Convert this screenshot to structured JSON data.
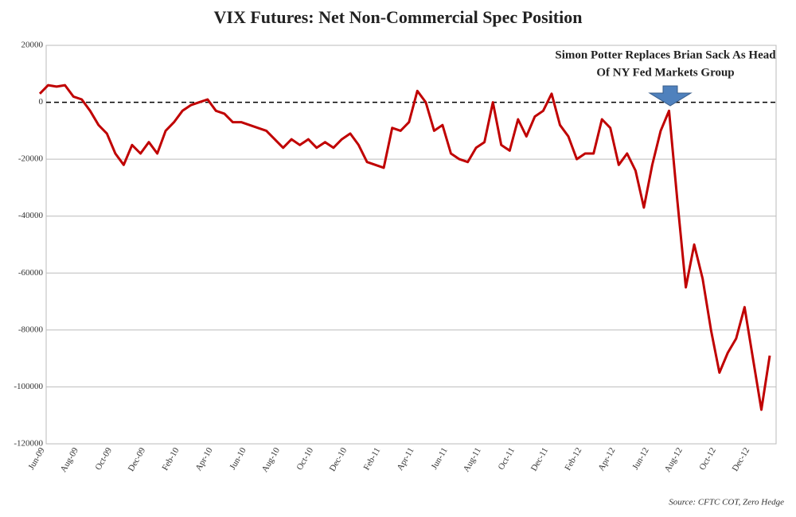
{
  "chart_data": {
    "type": "line",
    "title": "VIX Futures: Net Non-Commercial Spec Position",
    "annotation": [
      "Simon Potter Replaces Brian Sack As Head",
      "Of NY Fed Markets Group"
    ],
    "source": "Source: CFTC COT, Zero Hedge",
    "categories": [
      "Jun-09",
      null,
      null,
      null,
      "Aug-09",
      null,
      null,
      null,
      "Oct-09",
      null,
      null,
      null,
      "Dec-09",
      null,
      null,
      null,
      "Feb-10",
      null,
      null,
      null,
      "Apr-10",
      null,
      null,
      null,
      "Jun-10",
      null,
      null,
      null,
      "Aug-10",
      null,
      null,
      null,
      "Oct-10",
      null,
      null,
      null,
      "Dec-10",
      null,
      null,
      null,
      "Feb-11",
      null,
      null,
      null,
      "Apr-11",
      null,
      null,
      null,
      "Jun-11",
      null,
      null,
      null,
      "Aug-11",
      null,
      null,
      null,
      "Oct-11",
      null,
      null,
      null,
      "Dec-11",
      null,
      null,
      null,
      "Feb-12",
      null,
      null,
      null,
      "Apr-12",
      null,
      null,
      null,
      "Jun-12",
      null,
      null,
      null,
      "Aug-12",
      null,
      null,
      null,
      "Oct-12",
      null,
      null,
      null,
      "Dec-12",
      null,
      null,
      null
    ],
    "values": [
      3000,
      6000,
      5500,
      6000,
      2000,
      1000,
      -3000,
      -8000,
      -11000,
      -18000,
      -22000,
      -15000,
      -18000,
      -14000,
      -18000,
      -10000,
      -7000,
      -3000,
      -1000,
      0,
      1000,
      -3000,
      -4000,
      -7000,
      -7000,
      -8000,
      -9000,
      -10000,
      -13000,
      -16000,
      -13000,
      -15000,
      -13000,
      -16000,
      -14000,
      -16000,
      -13000,
      -11000,
      -15000,
      -21000,
      -22000,
      -23000,
      -9000,
      -10000,
      -7000,
      4000,
      0,
      -10000,
      -8000,
      -18000,
      -20000,
      -21000,
      -16000,
      -14000,
      0,
      -15000,
      -17000,
      -6000,
      -12000,
      -5000,
      -3000,
      3000,
      -8000,
      -12000,
      -20000,
      -18000,
      -18000,
      -6000,
      -9000,
      -22000,
      -18000,
      -24000,
      -37000,
      -22000,
      -10000,
      -3000,
      -35000,
      -65000,
      -50000,
      -62000,
      -80000,
      -95000,
      -88000,
      -83000,
      -72000,
      -90000,
      -108000,
      -89000
    ],
    "color": "#c00000",
    "ylim": [
      -120000,
      20000
    ],
    "yticks": [
      -120000,
      -100000,
      -80000,
      -60000,
      -40000,
      -20000,
      0,
      20000
    ],
    "grid": true
  }
}
